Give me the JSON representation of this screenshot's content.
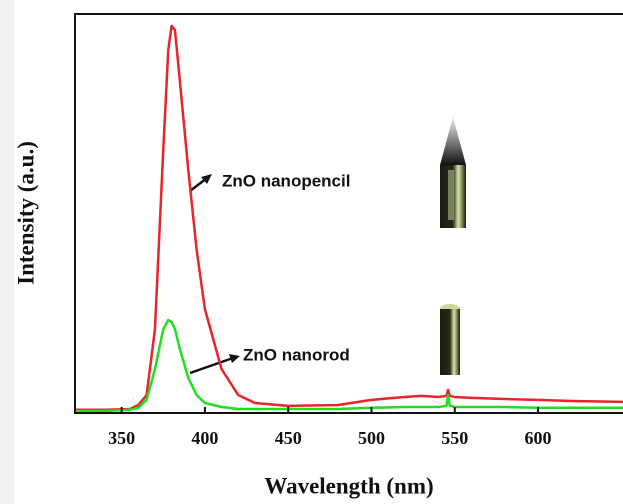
{
  "chart_data": {
    "type": "line",
    "x_label": "Wavelength (nm)",
    "y_label": "Intensity (a.u.)",
    "x": [
      322,
      340,
      355,
      360,
      365,
      370,
      375,
      378,
      380,
      382,
      385,
      390,
      395,
      400,
      410,
      420,
      430,
      450,
      480,
      500,
      520,
      530,
      540,
      545,
      546,
      547,
      550,
      560,
      580,
      600,
      620,
      651
    ],
    "series": [
      {
        "name": "ZnO nanopencil",
        "color": "#e8252a",
        "values": [
          0.8,
          0.8,
          1,
          2,
          4.5,
          21,
          66,
          91,
          97,
          96,
          83,
          61,
          41,
          26,
          11,
          4.5,
          2.5,
          1.8,
          2,
          3.3,
          4,
          4.3,
          4,
          4.3,
          5.8,
          4.3,
          4,
          3.8,
          3.5,
          3.3,
          3,
          2.8
        ]
      },
      {
        "name": "ZnO nanorod",
        "color": "#22dd22",
        "values": [
          0.5,
          0.5,
          0.8,
          1.3,
          3.3,
          11,
          21,
          23.3,
          22.8,
          21,
          16,
          8.8,
          4.5,
          2.5,
          1.5,
          1,
          1,
          1,
          1,
          1.3,
          1.5,
          1.5,
          1.5,
          1.8,
          4.5,
          1.8,
          1.5,
          1.5,
          1.5,
          1.3,
          1.3,
          1.3
        ]
      }
    ],
    "xlim": [
      322,
      651
    ],
    "xticks": [
      350,
      400,
      450,
      500,
      550,
      600
    ],
    "ylim": [
      0,
      100
    ]
  }
}
